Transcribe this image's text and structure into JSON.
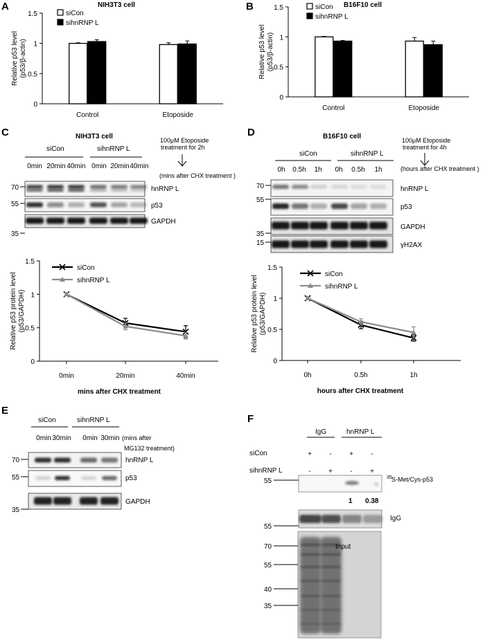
{
  "panels": {
    "A": {
      "label": "A",
      "chart_data": {
        "type": "bar",
        "title": "NIH3T3 cell",
        "ylabel": "Relative p53 level (p53/β-actin)",
        "ylabel_lines": [
          "Relative p53 level",
          "(p53/β-actin)"
        ],
        "ylim": [
          0,
          1.5
        ],
        "yticks": [
          "0",
          "0.5",
          "1",
          "1.5"
        ],
        "categories": [
          "Control",
          "Etoposide"
        ],
        "series": [
          {
            "name": "siCon",
            "values": [
              1.0,
              0.98
            ],
            "errors": [
              0.01,
              0.03
            ],
            "color": "#ffffff"
          },
          {
            "name": "sihnRNP L",
            "values": [
              1.03,
              0.99
            ],
            "errors": [
              0.03,
              0.05
            ],
            "color": "#000000"
          }
        ],
        "legend": "top-left"
      }
    },
    "B": {
      "label": "B",
      "chart_data": {
        "type": "bar",
        "title": "B16F10 cell",
        "ylabel": "Relative p53 level (p53/β-actin)",
        "ylabel_lines": [
          "Relative p53 level",
          "(p53/β-actin)"
        ],
        "ylim": [
          0,
          1.5
        ],
        "yticks": [
          "0",
          "0.5",
          "1",
          "1.5"
        ],
        "categories": [
          "Control",
          "Etoposide"
        ],
        "series": [
          {
            "name": "siCon",
            "values": [
              1.0,
              0.93
            ],
            "errors": [
              0.01,
              0.06
            ],
            "color": "#ffffff"
          },
          {
            "name": "sihnRNP L",
            "values": [
              0.93,
              0.87
            ],
            "errors": [
              0.01,
              0.06
            ],
            "color": "#000000"
          }
        ],
        "legend": "top-left"
      }
    },
    "C": {
      "label": "C",
      "blot": {
        "title": "NIH3T3 cell",
        "groups": [
          "siCon",
          "sihnRNP L"
        ],
        "lanes": [
          "0min",
          "20min",
          "40min",
          "0min",
          "20min",
          "40min"
        ],
        "treatment_lines": [
          "100μM Etoposide",
          "treatment  for 2h"
        ],
        "time_note": "(mins after CHX treatment )",
        "bands": [
          "hnRNP L",
          "p53",
          "GAPDH"
        ],
        "markers": [
          "70",
          "55",
          "35"
        ]
      },
      "chart_data": {
        "type": "line",
        "ylabel": "Relative p53 protein level (p53/GAPDH)",
        "ylabel_lines": [
          "Relative p53 protein level",
          "(p53/GAPDH)"
        ],
        "xlabel": "mins after CHX treatment",
        "x": [
          "0min",
          "20min",
          "40min"
        ],
        "ylim": [
          0,
          1.5
        ],
        "yticks": [
          "0",
          "0.5",
          "1",
          "1.5"
        ],
        "series": [
          {
            "name": "siCon",
            "values": [
              1.0,
              0.57,
              0.44
            ],
            "errors": [
              0.02,
              0.07,
              0.09
            ],
            "color": "#000000"
          },
          {
            "name": "sihnRNP L",
            "values": [
              1.0,
              0.52,
              0.38
            ],
            "errors": [
              0.02,
              0.05,
              0.05
            ],
            "color": "#8c8c8c"
          }
        ],
        "legend": "top-center"
      }
    },
    "D": {
      "label": "D",
      "blot": {
        "title": "B16F10 cell",
        "groups": [
          "siCon",
          "sihnRNP L"
        ],
        "lanes": [
          "0h",
          "0.5h",
          "1h",
          "0h",
          "0.5h",
          "1h"
        ],
        "treatment_lines": [
          "100μM Etoposide",
          "treatment  for 4h"
        ],
        "time_note": "(hours after CHX treatment )",
        "bands": [
          "hnRNP L",
          "p53",
          "GAPDH",
          "γH2AX"
        ],
        "markers": [
          "70",
          "55",
          "35",
          "15"
        ]
      },
      "chart_data": {
        "type": "line",
        "ylabel": "Relative p53 protein level (p53/GAPDH)",
        "ylabel_lines": [
          "Relative p53 protein level",
          "(p53/GAPDH)"
        ],
        "xlabel": "hours after CHX treatment",
        "x": [
          "0h",
          "0.5h",
          "1h"
        ],
        "ylim": [
          0,
          1.5
        ],
        "yticks": [
          "0",
          "0.5",
          "1",
          "1.5"
        ],
        "series": [
          {
            "name": "siCon",
            "values": [
              1.0,
              0.57,
              0.36
            ],
            "errors": [
              0.02,
              0.06,
              0.05
            ],
            "color": "#000000"
          },
          {
            "name": "sihnRNP L",
            "values": [
              1.0,
              0.62,
              0.45
            ],
            "errors": [
              0.02,
              0.05,
              0.09
            ],
            "color": "#8c8c8c"
          }
        ],
        "legend": "top-center"
      }
    },
    "E": {
      "label": "E",
      "blot": {
        "groups": [
          "siCon",
          "sihnRNP L"
        ],
        "lanes": [
          "0min",
          "30min",
          "0min",
          "30min"
        ],
        "treatment_lines": [
          "(mins after",
          "MG132  treatment)"
        ],
        "bands": [
          "hnRNP L",
          "p53",
          "GAPDH"
        ],
        "markers": [
          "70",
          "55",
          "35"
        ]
      }
    },
    "F": {
      "label": "F",
      "blot": {
        "groups": [
          "IgG",
          "hnRNP L"
        ],
        "rows": [
          {
            "label": "siCon",
            "signs": [
              "+",
              "-",
              "+",
              "-"
            ]
          },
          {
            "label": "sihnRNP L",
            "signs": [
              "-",
              "+",
              "-",
              "+"
            ]
          }
        ],
        "band_labels": {
          "p53_sup": "35",
          "p53": "S-Met/Cys-p53",
          "igg": "IgG",
          "input": "Input"
        },
        "quant": [
          "1",
          "0.38"
        ],
        "markers_top": [
          "55",
          "55"
        ],
        "markers_input": [
          "70",
          "55",
          "40",
          "35"
        ]
      }
    }
  }
}
